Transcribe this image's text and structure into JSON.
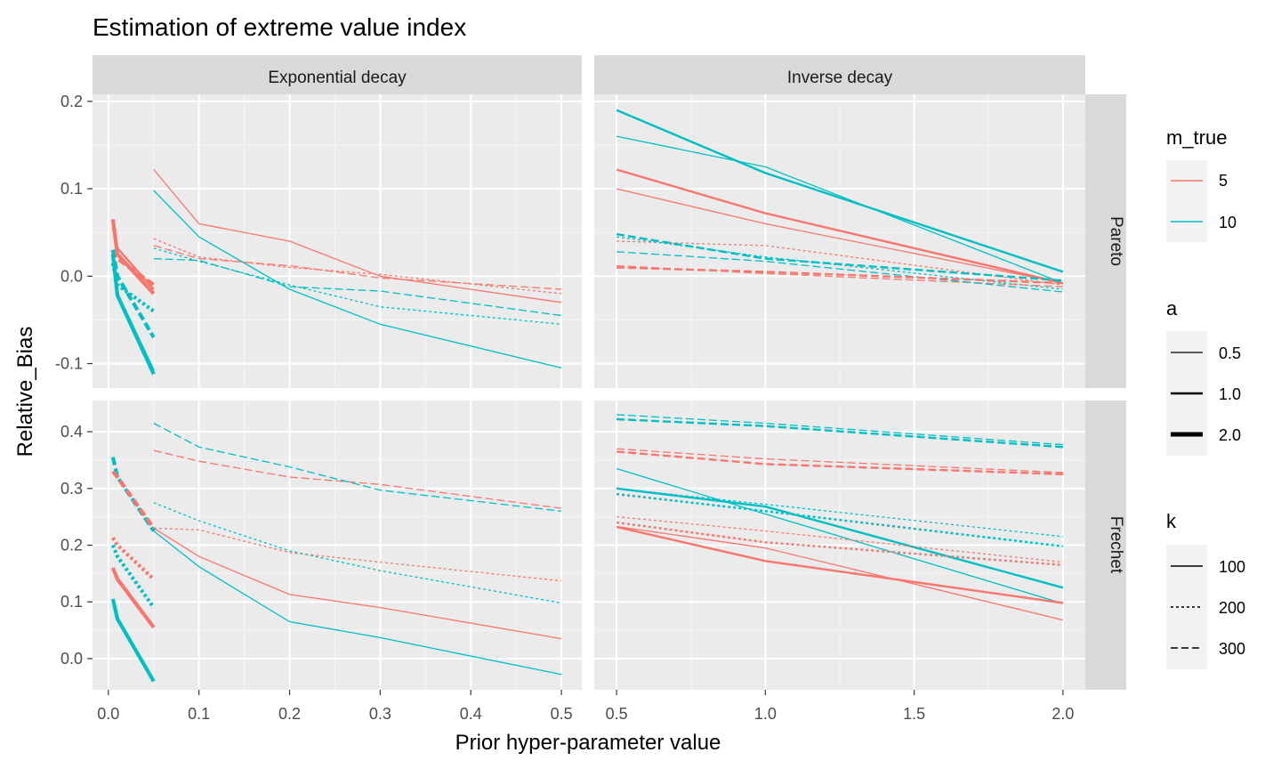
{
  "chart_data": {
    "type": "line",
    "title": "Estimation of extreme value index",
    "xlabel": "Prior hyper-parameter value",
    "ylabel": "Relative_Bias",
    "columns": [
      "Exponential decay",
      "Inverse decay"
    ],
    "rows": [
      "Pareto",
      "Frechet"
    ],
    "x_ticks": {
      "Exponential decay": [
        "0.0",
        "0.1",
        "0.2",
        "0.3",
        "0.4",
        "0.5"
      ],
      "Inverse decay": [
        "0.5",
        "1.0",
        "1.5",
        "2.0"
      ]
    },
    "y_ticks": {
      "Pareto": [
        "0.2",
        "0.1",
        "0.0",
        "-0.1"
      ],
      "Frechet": [
        "0.4",
        "0.3",
        "0.2",
        "0.1",
        "0.0"
      ]
    },
    "grid": true,
    "legend_placement": "right",
    "legend": {
      "m_true": {
        "title": "m_true",
        "entries": [
          {
            "label": "5",
            "color": "#F8766D"
          },
          {
            "label": "10",
            "color": "#00BFC4"
          }
        ]
      },
      "a": {
        "title": "a",
        "entries": [
          "0.5",
          "1.0",
          "2.0"
        ]
      },
      "k": {
        "title": "k",
        "entries": [
          "100",
          "200",
          "300"
        ]
      }
    },
    "colors": {
      "m5": "#F8766D",
      "m10": "#00BFC4",
      "panel_bg": "#EBEBEB",
      "strip_bg": "#D9D9D9"
    },
    "series": [
      {
        "panel": "Exponential decay|Pareto",
        "m": "5",
        "a": "0.5",
        "k": "100",
        "x": [
          0.05,
          0.1,
          0.2,
          0.3,
          0.5
        ],
        "y": [
          0.122,
          0.06,
          0.04,
          0.0,
          -0.03
        ]
      },
      {
        "panel": "Exponential decay|Pareto",
        "m": "5",
        "a": "0.5",
        "k": "200",
        "x": [
          0.05,
          0.1,
          0.2,
          0.3,
          0.5
        ],
        "y": [
          0.043,
          0.022,
          0.01,
          0.002,
          -0.02
        ]
      },
      {
        "panel": "Exponential decay|Pareto",
        "m": "5",
        "a": "0.5",
        "k": "300",
        "x": [
          0.05,
          0.1,
          0.2,
          0.3,
          0.5
        ],
        "y": [
          0.035,
          0.02,
          0.012,
          -0.002,
          -0.015
        ]
      },
      {
        "panel": "Exponential decay|Pareto",
        "m": "10",
        "a": "0.5",
        "k": "100",
        "x": [
          0.05,
          0.1,
          0.2,
          0.3,
          0.5
        ],
        "y": [
          0.098,
          0.045,
          -0.015,
          -0.055,
          -0.105
        ]
      },
      {
        "panel": "Exponential decay|Pareto",
        "m": "10",
        "a": "0.5",
        "k": "200",
        "x": [
          0.05,
          0.1,
          0.2,
          0.3,
          0.5
        ],
        "y": [
          0.032,
          0.017,
          -0.01,
          -0.035,
          -0.055
        ]
      },
      {
        "panel": "Exponential decay|Pareto",
        "m": "10",
        "a": "0.5",
        "k": "300",
        "x": [
          0.05,
          0.1,
          0.2,
          0.3,
          0.5
        ],
        "y": [
          0.02,
          0.018,
          -0.012,
          -0.017,
          -0.045
        ]
      },
      {
        "panel": "Exponential decay|Pareto",
        "m": "5",
        "a": "1.0",
        "k": "100",
        "x": [
          0.005,
          0.01,
          0.05
        ],
        "y": [
          0.055,
          0.032,
          -0.015
        ]
      },
      {
        "panel": "Exponential decay|Pareto",
        "m": "5",
        "a": "2.0",
        "k": "100",
        "x": [
          0.005,
          0.01,
          0.05
        ],
        "y": [
          0.065,
          0.025,
          -0.02
        ]
      },
      {
        "panel": "Exponential decay|Pareto",
        "m": "5",
        "a": "2.0",
        "k": "300",
        "x": [
          0.005,
          0.01,
          0.05
        ],
        "y": [
          0.03,
          0.02,
          -0.01
        ]
      },
      {
        "panel": "Exponential decay|Pareto",
        "m": "10",
        "a": "1.0",
        "k": "100",
        "x": [
          0.005,
          0.01,
          0.05
        ],
        "y": [
          0.02,
          -0.02,
          -0.108
        ]
      },
      {
        "panel": "Exponential decay|Pareto",
        "m": "10",
        "a": "2.0",
        "k": "100",
        "x": [
          0.005,
          0.01,
          0.05
        ],
        "y": [
          0.025,
          -0.022,
          -0.112
        ]
      },
      {
        "panel": "Exponential decay|Pareto",
        "m": "10",
        "a": "2.0",
        "k": "300",
        "x": [
          0.005,
          0.01,
          0.05
        ],
        "y": [
          0.03,
          0.0,
          -0.07
        ]
      },
      {
        "panel": "Exponential decay|Pareto",
        "m": "10",
        "a": "2.0",
        "k": "200",
        "x": [
          0.005,
          0.01,
          0.05
        ],
        "y": [
          0.015,
          -0.01,
          -0.04
        ]
      },
      {
        "panel": "Inverse decay|Pareto",
        "m": "5",
        "a": "0.5",
        "k": "100",
        "x": [
          0.5,
          1.0,
          2.0
        ],
        "y": [
          0.1,
          0.06,
          -0.008
        ]
      },
      {
        "panel": "Inverse decay|Pareto",
        "m": "5",
        "a": "1.0",
        "k": "100",
        "x": [
          0.5,
          1.0,
          2.0
        ],
        "y": [
          0.122,
          0.072,
          -0.008
        ]
      },
      {
        "panel": "Inverse decay|Pareto",
        "m": "10",
        "a": "0.5",
        "k": "100",
        "x": [
          0.5,
          1.0,
          2.0
        ],
        "y": [
          0.16,
          0.125,
          -0.008
        ]
      },
      {
        "panel": "Inverse decay|Pareto",
        "m": "10",
        "a": "1.0",
        "k": "100",
        "x": [
          0.5,
          1.0,
          2.0
        ],
        "y": [
          0.19,
          0.118,
          0.005
        ]
      },
      {
        "panel": "Inverse decay|Pareto",
        "m": "5",
        "a": "0.5",
        "k": "200",
        "x": [
          0.5,
          1.0,
          2.0
        ],
        "y": [
          0.04,
          0.035,
          -0.01
        ]
      },
      {
        "panel": "Inverse decay|Pareto",
        "m": "10",
        "a": "0.5",
        "k": "200",
        "x": [
          0.5,
          1.0,
          2.0
        ],
        "y": [
          0.045,
          0.022,
          -0.015
        ]
      },
      {
        "panel": "Inverse decay|Pareto",
        "m": "5",
        "a": "0.5",
        "k": "300",
        "x": [
          0.5,
          1.0,
          2.0
        ],
        "y": [
          0.012,
          0.003,
          -0.012
        ]
      },
      {
        "panel": "Inverse decay|Pareto",
        "m": "10",
        "a": "0.5",
        "k": "300",
        "x": [
          0.5,
          1.0,
          2.0
        ],
        "y": [
          0.028,
          0.017,
          -0.018
        ]
      },
      {
        "panel": "Inverse decay|Pareto",
        "m": "5",
        "a": "1.0",
        "k": "300",
        "x": [
          0.5,
          1.0,
          2.0
        ],
        "y": [
          0.01,
          0.005,
          -0.008
        ]
      },
      {
        "panel": "Inverse decay|Pareto",
        "m": "10",
        "a": "1.0",
        "k": "300",
        "x": [
          0.5,
          1.0,
          2.0
        ],
        "y": [
          0.048,
          0.02,
          -0.005
        ]
      },
      {
        "panel": "Exponential decay|Frechet",
        "m": "5",
        "a": "0.5",
        "k": "100",
        "x": [
          0.05,
          0.1,
          0.2,
          0.3,
          0.5
        ],
        "y": [
          0.23,
          0.18,
          0.113,
          0.09,
          0.035
        ]
      },
      {
        "panel": "Exponential decay|Frechet",
        "m": "10",
        "a": "0.5",
        "k": "100",
        "x": [
          0.05,
          0.1,
          0.2,
          0.3,
          0.5
        ],
        "y": [
          0.225,
          0.162,
          0.065,
          0.037,
          -0.028
        ]
      },
      {
        "panel": "Exponential decay|Frechet",
        "m": "5",
        "a": "0.5",
        "k": "200",
        "x": [
          0.05,
          0.1,
          0.2,
          0.3,
          0.5
        ],
        "y": [
          0.23,
          0.227,
          0.187,
          0.17,
          0.137
        ]
      },
      {
        "panel": "Exponential decay|Frechet",
        "m": "10",
        "a": "0.5",
        "k": "200",
        "x": [
          0.05,
          0.1,
          0.2,
          0.3,
          0.5
        ],
        "y": [
          0.275,
          0.243,
          0.19,
          0.155,
          0.098
        ]
      },
      {
        "panel": "Exponential decay|Frechet",
        "m": "5",
        "a": "0.5",
        "k": "300",
        "x": [
          0.05,
          0.1,
          0.2,
          0.3,
          0.5
        ],
        "y": [
          0.367,
          0.348,
          0.32,
          0.307,
          0.265
        ]
      },
      {
        "panel": "Exponential decay|Frechet",
        "m": "10",
        "a": "0.5",
        "k": "300",
        "x": [
          0.05,
          0.1,
          0.2,
          0.3,
          0.5
        ],
        "y": [
          0.415,
          0.373,
          0.338,
          0.297,
          0.26
        ]
      },
      {
        "panel": "Exponential decay|Frechet",
        "m": "10",
        "a": "2.0",
        "k": "300",
        "x": [
          0.005,
          0.01,
          0.05
        ],
        "y": [
          0.355,
          0.32,
          0.225
        ]
      },
      {
        "panel": "Exponential decay|Frechet",
        "m": "5",
        "a": "2.0",
        "k": "300",
        "x": [
          0.005,
          0.01,
          0.05
        ],
        "y": [
          0.33,
          0.32,
          0.23
        ]
      },
      {
        "panel": "Exponential decay|Frechet",
        "m": "5",
        "a": "2.0",
        "k": "200",
        "x": [
          0.005,
          0.01,
          0.05
        ],
        "y": [
          0.213,
          0.2,
          0.14
        ]
      },
      {
        "panel": "Exponential decay|Frechet",
        "m": "10",
        "a": "2.0",
        "k": "200",
        "x": [
          0.005,
          0.01,
          0.05
        ],
        "y": [
          0.2,
          0.18,
          0.09
        ]
      },
      {
        "panel": "Exponential decay|Frechet",
        "m": "5",
        "a": "2.0",
        "k": "100",
        "x": [
          0.005,
          0.01,
          0.05
        ],
        "y": [
          0.16,
          0.14,
          0.055
        ]
      },
      {
        "panel": "Exponential decay|Frechet",
        "m": "10",
        "a": "2.0",
        "k": "100",
        "x": [
          0.005,
          0.01,
          0.05
        ],
        "y": [
          0.105,
          0.07,
          -0.04
        ]
      },
      {
        "panel": "Inverse decay|Frechet",
        "m": "10",
        "a": "0.5",
        "k": "300",
        "x": [
          0.5,
          1.0,
          2.0
        ],
        "y": [
          0.43,
          0.415,
          0.377
        ]
      },
      {
        "panel": "Inverse decay|Frechet",
        "m": "10",
        "a": "1.0",
        "k": "300",
        "x": [
          0.5,
          1.0,
          2.0
        ],
        "y": [
          0.422,
          0.41,
          0.373
        ]
      },
      {
        "panel": "Inverse decay|Frechet",
        "m": "5",
        "a": "0.5",
        "k": "300",
        "x": [
          0.5,
          1.0,
          2.0
        ],
        "y": [
          0.37,
          0.352,
          0.328
        ]
      },
      {
        "panel": "Inverse decay|Frechet",
        "m": "5",
        "a": "1.0",
        "k": "300",
        "x": [
          0.5,
          1.0,
          2.0
        ],
        "y": [
          0.365,
          0.343,
          0.325
        ]
      },
      {
        "panel": "Inverse decay|Frechet",
        "m": "10",
        "a": "0.5",
        "k": "100",
        "x": [
          0.5,
          1.0,
          2.0
        ],
        "y": [
          0.335,
          0.255,
          0.097
        ]
      },
      {
        "panel": "Inverse decay|Frechet",
        "m": "10",
        "a": "1.0",
        "k": "100",
        "x": [
          0.5,
          1.0,
          2.0
        ],
        "y": [
          0.3,
          0.268,
          0.125
        ]
      },
      {
        "panel": "Inverse decay|Frechet",
        "m": "10",
        "a": "0.5",
        "k": "200",
        "x": [
          0.5,
          1.0,
          2.0
        ],
        "y": [
          0.3,
          0.272,
          0.215
        ]
      },
      {
        "panel": "Inverse decay|Frechet",
        "m": "10",
        "a": "1.0",
        "k": "200",
        "x": [
          0.5,
          1.0,
          2.0
        ],
        "y": [
          0.29,
          0.26,
          0.198
        ]
      },
      {
        "panel": "Inverse decay|Frechet",
        "m": "5",
        "a": "0.5",
        "k": "200",
        "x": [
          0.5,
          1.0,
          2.0
        ],
        "y": [
          0.25,
          0.225,
          0.17
        ]
      },
      {
        "panel": "Inverse decay|Frechet",
        "m": "5",
        "a": "1.0",
        "k": "200",
        "x": [
          0.5,
          1.0,
          2.0
        ],
        "y": [
          0.24,
          0.205,
          0.165
        ]
      },
      {
        "panel": "Inverse decay|Frechet",
        "m": "5",
        "a": "0.5",
        "k": "100",
        "x": [
          0.5,
          1.0,
          2.0
        ],
        "y": [
          0.233,
          0.195,
          0.068
        ]
      },
      {
        "panel": "Inverse decay|Frechet",
        "m": "5",
        "a": "1.0",
        "k": "100",
        "x": [
          0.5,
          1.0,
          2.0
        ],
        "y": [
          0.232,
          0.172,
          0.098
        ]
      }
    ]
  }
}
